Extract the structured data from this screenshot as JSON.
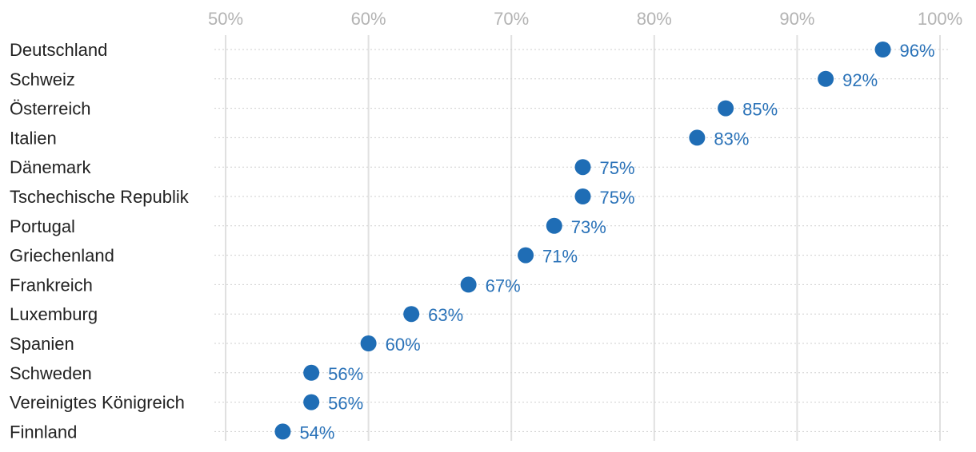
{
  "chart_data": {
    "type": "scatter",
    "title": "",
    "xlabel": "",
    "ylabel": "",
    "xlim": [
      50,
      100
    ],
    "x_ticks": [
      {
        "value": 50,
        "label": "50%"
      },
      {
        "value": 60,
        "label": "60%"
      },
      {
        "value": 70,
        "label": "70%"
      },
      {
        "value": 80,
        "label": "80%"
      },
      {
        "value": 90,
        "label": "90%"
      },
      {
        "value": 100,
        "label": "100%"
      }
    ],
    "categories": [
      "Deutschland",
      "Schweiz",
      "Österreich",
      "Italien",
      "Dänemark",
      "Tschechische Republik",
      "Portugal",
      "Griechenland",
      "Frankreich",
      "Luxemburg",
      "Spanien",
      "Schweden",
      "Vereinigtes Königreich",
      "Finnland"
    ],
    "values": [
      96,
      92,
      85,
      83,
      75,
      75,
      73,
      71,
      67,
      63,
      60,
      56,
      56,
      54
    ],
    "value_labels": [
      "96%",
      "92%",
      "85%",
      "83%",
      "75%",
      "75%",
      "73%",
      "71%",
      "67%",
      "63%",
      "60%",
      "56%",
      "56%",
      "54%"
    ],
    "grid": true,
    "colors": {
      "dot": "#1f6db5",
      "value_label": "#2a72b8",
      "tick_label": "#b3b3b3",
      "category_label": "#222222"
    }
  }
}
